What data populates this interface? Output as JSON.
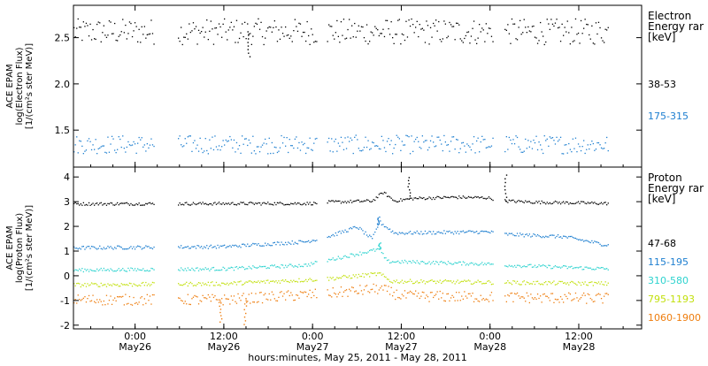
{
  "chart_data": {
    "type": "scatter",
    "xlabel": "hours:minutes, May 25, 2011 - May 28, 2011",
    "x_ticks": [
      {
        "time": "2011-05-26 00:00",
        "line1": "0:00",
        "line2": "May26"
      },
      {
        "time": "2011-05-26 12:00",
        "line1": "12:00",
        "line2": "May26"
      },
      {
        "time": "2011-05-27 00:00",
        "line1": "0:00",
        "line2": "May27"
      },
      {
        "time": "2011-05-27 12:00",
        "line1": "12:00",
        "line2": "May27"
      },
      {
        "time": "2011-05-28 00:00",
        "line1": "0:00",
        "line2": "May28"
      },
      {
        "time": "2011-05-28 12:00",
        "line1": "12:00",
        "line2": "May28"
      }
    ],
    "xlim": [
      "2011-05-25 15:40",
      "2011-05-28 20:30"
    ],
    "gaps": [
      [
        "2011-05-26 02:30",
        "2011-05-26 05:40"
      ],
      [
        "2011-05-27 00:30",
        "2011-05-27 01:50"
      ],
      [
        "2011-05-28 00:20",
        "2011-05-28 01:50"
      ]
    ],
    "data_end": "2011-05-28 16:00",
    "panels": [
      {
        "id": "electron",
        "ylabel_lines": [
          "ACE EPAM",
          "log(Electron Flux)",
          "[1/(cm²s ster MeV)]"
        ],
        "ylim": [
          1.1,
          2.85
        ],
        "y_ticks": [
          "1.5",
          "2.0",
          "2.5"
        ],
        "legend_title_lines": [
          "Electron",
          "Energy rar",
          "[keV]"
        ],
        "series": [
          {
            "name": "38-53",
            "color": "#000000",
            "base": 2.57,
            "scatter": 0.14,
            "features": [
              {
                "time": "2011-05-26 15:20",
                "value": 2.3
              }
            ]
          },
          {
            "name": "175-315",
            "color": "#1e7fd0",
            "base": 1.35,
            "scatter": 0.1,
            "features": []
          }
        ]
      },
      {
        "id": "proton",
        "ylabel_lines": [
          "ACE EPAM",
          "log(Proton Flux)",
          "[1/(cm²s ster MeV)]"
        ],
        "ylim": [
          -2.15,
          4.4
        ],
        "y_ticks": [
          "-2",
          "-1",
          "0",
          "1",
          "2",
          "3",
          "4"
        ],
        "legend_title_lines": [
          "Proton",
          "Energy rar",
          "[keV]"
        ],
        "series": [
          {
            "name": "47-68",
            "color": "#000000",
            "scatter": 0.06,
            "profile": [
              [
                "2011-05-25 15:40",
                2.93
              ],
              [
                "2011-05-27 00:30",
                2.95
              ],
              [
                "2011-05-27 02:00",
                3.0
              ],
              [
                "2011-05-27 08:00",
                3.05
              ],
              [
                "2011-05-27 09:30",
                3.4
              ],
              [
                "2011-05-27 11:00",
                3.05
              ],
              [
                "2011-05-27 13:30",
                3.15
              ],
              [
                "2011-05-27 19:00",
                3.2
              ],
              [
                "2011-05-27 23:30",
                3.18
              ],
              [
                "2011-05-28 02:00",
                3.05
              ],
              [
                "2011-05-28 06:00",
                3.0
              ],
              [
                "2011-05-28 16:00",
                2.95
              ]
            ],
            "features": [
              {
                "time": "2011-05-27 13:00",
                "value": 4.0
              },
              {
                "time": "2011-05-28 02:00",
                "value": 4.1
              }
            ]
          },
          {
            "name": "115-195",
            "color": "#1e7fd0",
            "scatter": 0.07,
            "profile": [
              [
                "2011-05-25 15:40",
                1.15
              ],
              [
                "2011-05-26 12:00",
                1.2
              ],
              [
                "2011-05-26 23:00",
                1.4
              ],
              [
                "2011-05-27 02:00",
                1.6
              ],
              [
                "2011-05-27 06:00",
                2.0
              ],
              [
                "2011-05-27 08:00",
                1.5
              ],
              [
                "2011-05-27 09:00",
                2.2
              ],
              [
                "2011-05-27 11:00",
                1.75
              ],
              [
                "2011-05-27 23:30",
                1.8
              ],
              [
                "2011-05-28 02:00",
                1.7
              ],
              [
                "2011-05-28 10:00",
                1.6
              ],
              [
                "2011-05-28 16:00",
                1.25
              ]
            ],
            "features": [
              {
                "time": "2011-05-27 08:50",
                "value": 2.4
              }
            ]
          },
          {
            "name": "310-580",
            "color": "#2ed3cf",
            "scatter": 0.07,
            "profile": [
              [
                "2011-05-25 15:40",
                0.25
              ],
              [
                "2011-05-26 12:00",
                0.3
              ],
              [
                "2011-05-26 23:00",
                0.45
              ],
              [
                "2011-05-27 02:00",
                0.65
              ],
              [
                "2011-05-27 09:00",
                1.1
              ],
              [
                "2011-05-27 10:00",
                0.6
              ],
              [
                "2011-05-27 23:30",
                0.5
              ],
              [
                "2011-05-28 02:00",
                0.45
              ],
              [
                "2011-05-28 16:00",
                0.3
              ]
            ],
            "features": [
              {
                "time": "2011-05-27 09:00",
                "value": 1.35
              }
            ]
          },
          {
            "name": "795-1193",
            "color": "#c2e00d",
            "scatter": 0.08,
            "profile": [
              [
                "2011-05-25 15:40",
                -0.35
              ],
              [
                "2011-05-26 12:00",
                -0.3
              ],
              [
                "2011-05-26 23:00",
                -0.15
              ],
              [
                "2011-05-27 02:00",
                -0.1
              ],
              [
                "2011-05-27 09:00",
                0.1
              ],
              [
                "2011-05-27 10:30",
                -0.2
              ],
              [
                "2011-05-28 16:00",
                -0.3
              ]
            ],
            "features": []
          },
          {
            "name": "1060-1900",
            "color": "#ee7d0e",
            "scatter": 0.22,
            "profile": [
              [
                "2011-05-25 15:40",
                -0.95
              ],
              [
                "2011-05-26 12:00",
                -0.95
              ],
              [
                "2011-05-27 02:00",
                -0.7
              ],
              [
                "2011-05-27 09:00",
                -0.5
              ],
              [
                "2011-05-27 12:00",
                -0.8
              ],
              [
                "2011-05-28 16:00",
                -0.9
              ]
            ],
            "features": [
              {
                "time": "2011-05-26 11:30",
                "value": -1.85
              },
              {
                "time": "2011-05-26 14:50",
                "value": -1.95
              }
            ]
          }
        ]
      }
    ]
  }
}
